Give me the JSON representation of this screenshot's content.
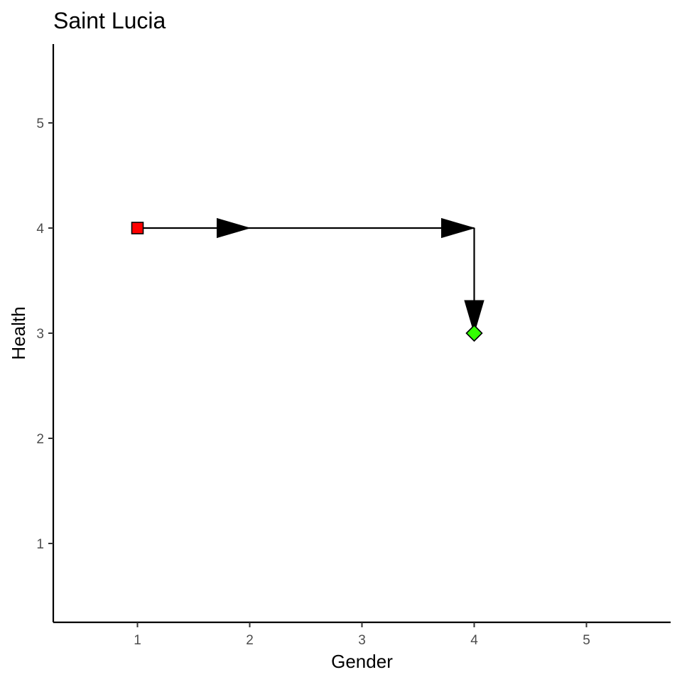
{
  "chart_data": {
    "type": "scatter",
    "title": "Saint Lucia",
    "xlabel": "Gender",
    "ylabel": "Health",
    "xlim": [
      0.25,
      5.75
    ],
    "ylim": [
      0.25,
      5.75
    ],
    "x_ticks": [
      "1",
      "2",
      "3",
      "4",
      "5"
    ],
    "y_ticks": [
      "1",
      "2",
      "3",
      "4",
      "5"
    ],
    "grid": false,
    "legend": "none",
    "points": [
      {
        "x": 1,
        "y": 4,
        "shape": "square",
        "color": "#FF0000"
      },
      {
        "x": 4,
        "y": 3,
        "shape": "diamond",
        "color": "#33FF00"
      }
    ],
    "path": [
      {
        "from": [
          1,
          4
        ],
        "to": [
          2,
          4
        ]
      },
      {
        "from": [
          2,
          4
        ],
        "to": [
          4,
          4
        ]
      },
      {
        "from": [
          4,
          4
        ],
        "to": [
          4,
          3
        ]
      }
    ],
    "line_color": "#000000"
  }
}
